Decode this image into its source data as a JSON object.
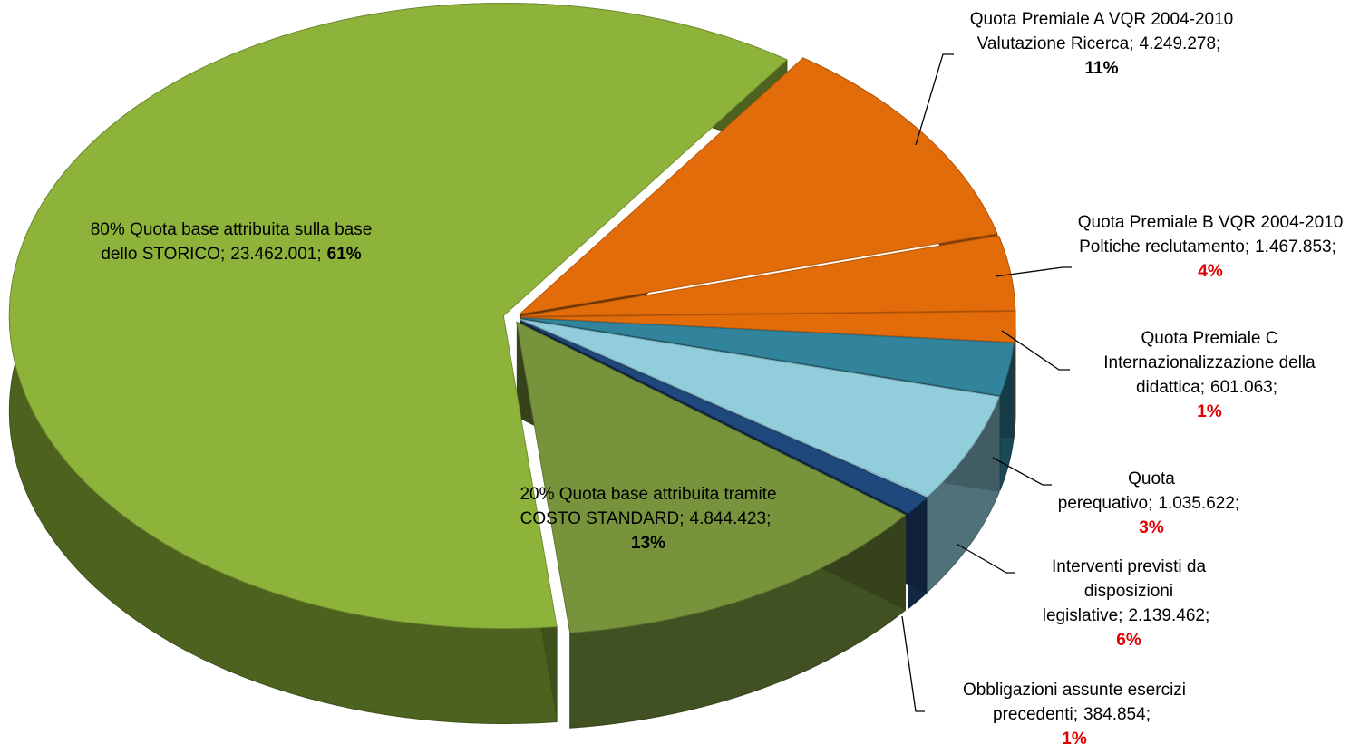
{
  "chart_data": {
    "type": "pie",
    "categories": [
      "Quota Premiale  A VQR 2004-2010 Valutazione Ricerca",
      "Quota Premiale B VQR 2004-2010 Poltiche reclutamento",
      "Quota Premiale C Internazionalizzazione della didattica",
      "Quota perequativo",
      "Interventi previsti da disposizioni legislative",
      "Obbligazioni assunte esercizi precedenti",
      "20%  Quota base attribuita tramite COSTO STANDARD",
      "80% Quota base attribuita sulla base dello STORICO"
    ],
    "values": [
      4249278,
      1467853,
      601063,
      1035622,
      2139462,
      384854,
      4844423,
      23462001
    ],
    "value_labels": [
      "4.249.278",
      "1.467.853",
      "601.063",
      "1.035.622",
      "2.139.462",
      "384.854",
      "4.844.423",
      "23.462.001"
    ],
    "percents": [
      11,
      4,
      1,
      3,
      6,
      1,
      13,
      61
    ],
    "percent_labels": [
      "11%",
      "4%",
      "1%",
      "3%",
      "6%",
      "1%",
      "13%",
      "61%"
    ],
    "separator": ";",
    "colors": [
      "#e36c0a",
      "#e36c0a",
      "#e36c0a",
      "#31849b",
      "#92cddc",
      "#1f497d",
      "#77933c",
      "#8db33a"
    ],
    "percent_label_colors": [
      "#000000",
      "#e00000",
      "#e00000",
      "#e00000",
      "#e00000",
      "#e00000",
      "#000000",
      "#000000"
    ]
  }
}
